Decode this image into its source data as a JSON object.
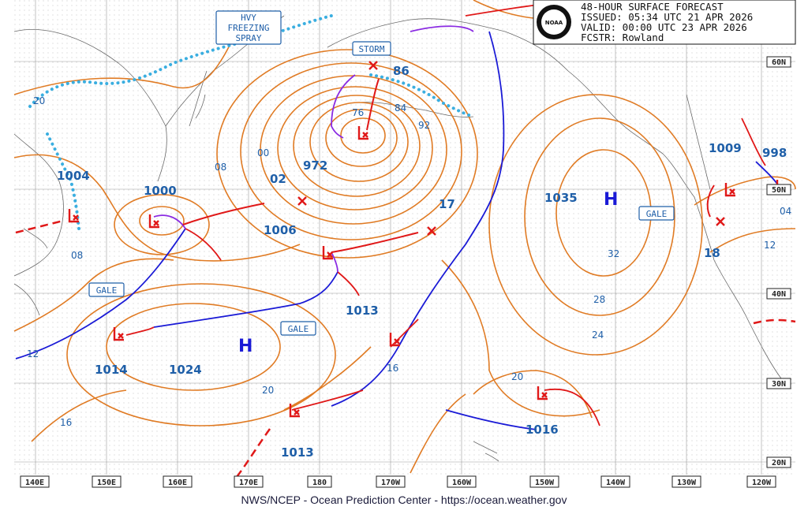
{
  "header": {
    "line1": "48-HOUR SURFACE FORECAST",
    "line2": "ISSUED: 05:34 UTC 21 APR 2026",
    "line3": "VALID:  00:00 UTC 23 APR 2026",
    "line4": "FCSTR:  Rowland",
    "logo_text": "NOAA"
  },
  "footer": "NWS/NCEP - Ocean Prediction Center - https://ocean.weather.gov",
  "colors": {
    "isobar": "#e07b24",
    "cold_front": "#1a1ad6",
    "warm_front": "#e01818",
    "occluded": "#8a2be2",
    "ice": "#3aaee0",
    "text": "#1f5fa8"
  },
  "longitudes": [
    "140E",
    "150E",
    "160E",
    "170E",
    "180",
    "170W",
    "160W",
    "150W",
    "140W",
    "130W",
    "120W"
  ],
  "latitudes": [
    "60N",
    "50N",
    "40N",
    "30N",
    "20N"
  ],
  "pressure_centers": {
    "low_972": "972",
    "low_1000": "1000",
    "low_1006": "1006",
    "low_1004": "1004",
    "low_1013_mid": "1013",
    "low_1014": "1014",
    "high_1024": "1024",
    "low_1013_south": "1013",
    "low_1016": "1016",
    "high_1035": "1035",
    "low_1009": "1009",
    "low_998": "998",
    "h_west": "H",
    "h_east": "H"
  },
  "isobar_labels": [
    "20",
    "08",
    "00",
    "08",
    "02",
    "76",
    "84",
    "92",
    "86",
    "17",
    "32",
    "28",
    "24",
    "20",
    "16",
    "20",
    "16",
    "12",
    "18",
    "04",
    "12"
  ],
  "warning_labels": {
    "freezing_spray": [
      "HVY",
      "FREEZING",
      "SPRAY"
    ],
    "storm": "STORM",
    "gale_west": "GALE",
    "gale_mid": "GALE",
    "gale_east": "GALE"
  }
}
